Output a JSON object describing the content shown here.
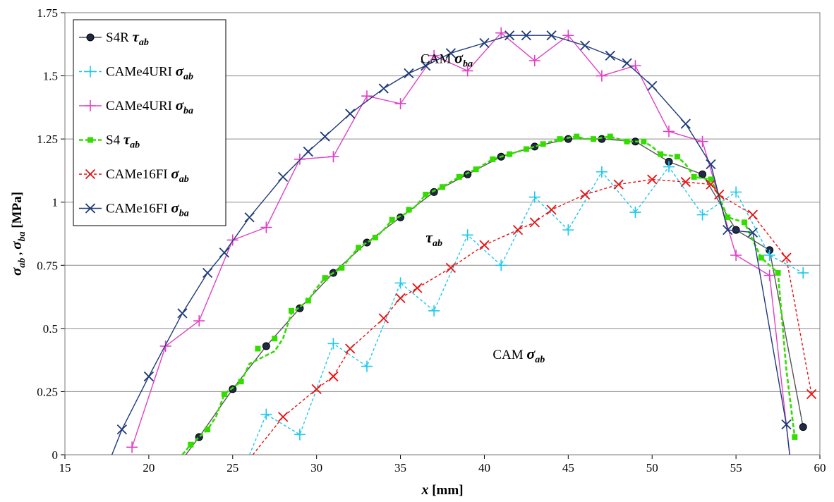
{
  "chart_data": {
    "type": "line",
    "xlabel": {
      "main": "x",
      "unit": " [mm]"
    },
    "ylabel": {
      "s1": "σ",
      "sub1": "ab",
      "sep": " , ",
      "s2": "σ",
      "sub2": "ba",
      "unit": " [MPa]"
    },
    "xlim": [
      15,
      60
    ],
    "ylim": [
      0,
      1.75
    ],
    "xticks": [
      "15",
      "20",
      "25",
      "30",
      "35",
      "40",
      "45",
      "50",
      "55",
      "60"
    ],
    "yticks": [
      "0",
      "0.25",
      "0.5",
      "0.75",
      "1",
      "1.25",
      "1.5",
      "1.75"
    ],
    "grid": "horizontal",
    "legend_position": "top-left",
    "annotations": [
      {
        "id": "cam_sba",
        "text": "CAM ",
        "sym": "σ",
        "sub": "ba",
        "x": 36.2,
        "y": 1.55
      },
      {
        "id": "tau_ab",
        "text": "",
        "sym": "τ",
        "sub": "ab",
        "x": 36.5,
        "y": 0.84
      },
      {
        "id": "cam_sab",
        "text": "CAM ",
        "sym": "σ",
        "sub": "ab",
        "x": 40.5,
        "y": 0.38
      }
    ],
    "series": [
      {
        "name": {
          "base": "S4R ",
          "sym": "τ",
          "sub": "ab"
        },
        "color": "#000000",
        "line_color": "#555555",
        "dash": "none",
        "marker": "circle",
        "marker_color": "#1f2b44",
        "show_markers_at": "points",
        "x": [
          22.2,
          23.0,
          25.0,
          27.0,
          29.0,
          31.0,
          33.0,
          35.0,
          37.0,
          39.0,
          41.0,
          43.0,
          45.0,
          47.0,
          49.0,
          51.0,
          53.0,
          55.0,
          57.0,
          59.0
        ],
        "y": [
          0.0,
          0.07,
          0.26,
          0.43,
          0.58,
          0.72,
          0.84,
          0.94,
          1.04,
          1.11,
          1.18,
          1.22,
          1.25,
          1.25,
          1.24,
          1.16,
          1.11,
          0.89,
          0.81,
          0.11
        ],
        "marker_skip_first": true
      },
      {
        "name": {
          "base": "CAMe4URI ",
          "sym": "σ",
          "sub": "ab"
        },
        "color": "#1ec8f0",
        "line_color": "#1ec8f0",
        "dash": "4,3",
        "marker": "plus",
        "x": [
          26.0,
          27.0,
          29.0,
          31.0,
          33.0,
          35.0,
          37.0,
          39.0,
          41.0,
          43.0,
          45.0,
          47.0,
          49.0,
          51.0,
          53.0,
          55.0,
          57.0,
          59.0
        ],
        "y": [
          0.0,
          0.16,
          0.08,
          0.44,
          0.35,
          0.68,
          0.57,
          0.87,
          0.75,
          1.02,
          0.89,
          1.12,
          0.96,
          1.14,
          0.95,
          1.04,
          0.79,
          0.72
        ],
        "marker_skip_first": true
      },
      {
        "name": {
          "base": "CAMe4URI ",
          "sym": "σ",
          "sub": "ba"
        },
        "color": "#e040c8",
        "line_color": "#e040c8",
        "dash": "none",
        "marker": "plus",
        "x": [
          19.0,
          21.0,
          23.0,
          25.0,
          27.0,
          29.0,
          31.0,
          33.0,
          35.0,
          37.0,
          39.0,
          41.0,
          43.0,
          45.0,
          47.0,
          49.0,
          51.0,
          53.0,
          55.0,
          57.0,
          58.2
        ],
        "y": [
          0.03,
          0.43,
          0.53,
          0.85,
          0.9,
          1.17,
          1.18,
          1.42,
          1.39,
          1.58,
          1.52,
          1.67,
          1.56,
          1.66,
          1.5,
          1.54,
          1.28,
          1.24,
          0.79,
          0.71,
          0.0
        ],
        "marker_skip_last": true
      },
      {
        "name": {
          "base": "S4 ",
          "sym": "τ",
          "sub": "ab"
        },
        "color": "#33dd00",
        "line_color": "#33dd00",
        "dash": "6,3",
        "marker": "square",
        "x": [
          22.0,
          22.5,
          23.5,
          24.0,
          24.5,
          25.5,
          26.0,
          27.5,
          28.0,
          28.5,
          29.5,
          30.0,
          30.5,
          31.5,
          32.0,
          32.5,
          33.5,
          34.0,
          34.5,
          35.5,
          36.0,
          36.5,
          37.5,
          38.0,
          38.5,
          39.5,
          40.0,
          40.5,
          41.5,
          42.0,
          42.5,
          43.5,
          44.0,
          44.5,
          45.5,
          46.0,
          46.5,
          47.5,
          48.0,
          48.5,
          49.5,
          50.0,
          50.5,
          51.5,
          52.0,
          52.5,
          53.5,
          54.0,
          54.5,
          55.5,
          56.0,
          56.5,
          57.5,
          58.0,
          58.5
        ],
        "y": [
          0.0,
          0.04,
          0.1,
          0.15,
          0.24,
          0.29,
          0.36,
          0.41,
          0.46,
          0.56,
          0.61,
          0.66,
          0.7,
          0.74,
          0.78,
          0.82,
          0.86,
          0.89,
          0.93,
          0.96,
          0.99,
          1.03,
          1.06,
          1.08,
          1.1,
          1.13,
          1.15,
          1.17,
          1.19,
          1.2,
          1.21,
          1.23,
          1.24,
          1.25,
          1.26,
          1.25,
          1.25,
          1.26,
          1.25,
          1.24,
          1.24,
          1.22,
          1.19,
          1.18,
          1.15,
          1.1,
          1.09,
          1.02,
          0.94,
          0.92,
          0.85,
          0.78,
          0.72,
          0.34,
          0.07
        ],
        "marker_x": [
          22.5,
          23.5,
          24.5,
          25.5,
          26.5,
          27.5,
          28.5,
          29.5,
          30.5,
          31.5,
          32.5,
          33.5,
          34.5,
          35.5,
          36.5,
          37.5,
          38.5,
          39.5,
          40.5,
          41.5,
          42.5,
          43.5,
          44.5,
          45.5,
          46.5,
          47.5,
          48.5,
          49.5,
          50.5,
          51.5,
          52.5,
          53.5,
          54.5,
          55.5,
          56.5,
          57.5,
          58.5
        ],
        "marker_y": [
          0.04,
          0.1,
          0.24,
          0.29,
          0.42,
          0.46,
          0.57,
          0.61,
          0.7,
          0.74,
          0.82,
          0.86,
          0.93,
          0.97,
          1.03,
          1.06,
          1.1,
          1.13,
          1.17,
          1.19,
          1.21,
          1.23,
          1.25,
          1.26,
          1.25,
          1.26,
          1.24,
          1.24,
          1.19,
          1.18,
          1.1,
          1.09,
          0.94,
          0.92,
          0.78,
          0.72,
          0.07
        ]
      },
      {
        "name": {
          "base": "CAMe16FI ",
          "sym": "σ",
          "sub": "ab"
        },
        "color": "#e81010",
        "line_color": "#e81010",
        "dash": "4,3",
        "marker": "x",
        "x": [
          26.2,
          28.0,
          30.0,
          31.0,
          32.0,
          34.0,
          35.0,
          36.0,
          38.0,
          40.0,
          42.0,
          43.0,
          44.0,
          46.0,
          48.0,
          50.0,
          52.0,
          53.5,
          54.0,
          56.0,
          58.0,
          59.5
        ],
        "y": [
          0.0,
          0.15,
          0.26,
          0.31,
          0.42,
          0.54,
          0.62,
          0.66,
          0.74,
          0.83,
          0.89,
          0.92,
          0.97,
          1.03,
          1.07,
          1.09,
          1.08,
          1.07,
          1.03,
          0.95,
          0.78,
          0.24
        ],
        "marker_skip_first": true
      },
      {
        "name": {
          "base": "CAMe16FI ",
          "sym": "σ",
          "sub": "ba"
        },
        "color": "#1e3a7a",
        "line_color": "#1e3a7a",
        "dash": "none",
        "marker": "x",
        "x": [
          17.8,
          18.4,
          20.0,
          22.0,
          23.5,
          24.5,
          26.0,
          28.0,
          29.5,
          30.5,
          32.0,
          34.0,
          35.5,
          36.5,
          38.0,
          40.0,
          41.5,
          42.5,
          44.0,
          46.0,
          47.5,
          48.5,
          50.0,
          52.0,
          53.5,
          54.5,
          56.0,
          58.0,
          58.2
        ],
        "y": [
          0.0,
          0.1,
          0.31,
          0.56,
          0.72,
          0.8,
          0.94,
          1.1,
          1.2,
          1.26,
          1.35,
          1.45,
          1.51,
          1.54,
          1.59,
          1.63,
          1.66,
          1.66,
          1.66,
          1.62,
          1.58,
          1.55,
          1.46,
          1.31,
          1.15,
          0.89,
          0.88,
          0.12,
          0.0
        ],
        "marker_skip_first": true,
        "marker_skip_last": true
      }
    ]
  }
}
